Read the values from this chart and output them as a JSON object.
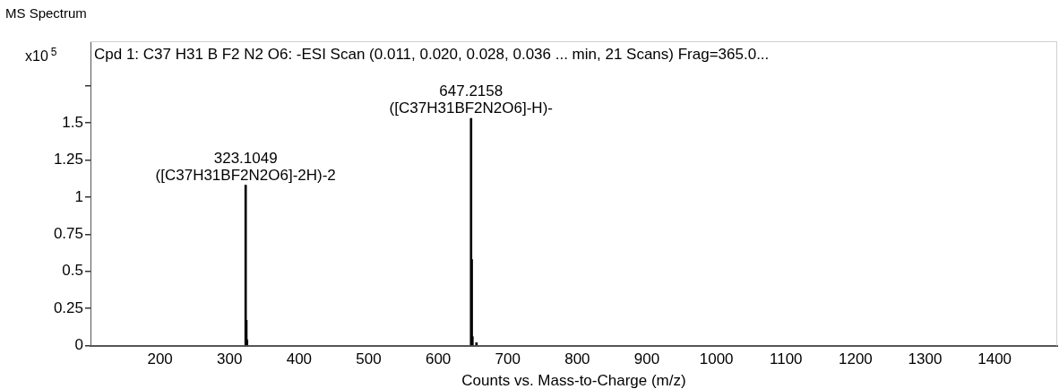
{
  "chart_data": {
    "type": "bar",
    "title": "MS Spectrum",
    "subtitle": "Cpd 1: C37 H31 B F2 N2 O6: -ESI Scan (0.011, 0.020, 0.028, 0.036 ... min, 21 Scans) Frag=365.0...",
    "xlabel": "Counts vs. Mass-to-Charge (m/z)",
    "ylabel": "x10$^{5}$",
    "x": [
      323.1049,
      324.1,
      325.1,
      647.2158,
      648.2,
      649.2,
      655
    ],
    "values": [
      1.08,
      0.17,
      0.04,
      1.53,
      0.58,
      0.06,
      0.02
    ],
    "color": "#000000",
    "xlim": [
      100,
      1490
    ],
    "xticks": [
      200,
      300,
      400,
      500,
      600,
      700,
      800,
      900,
      1000,
      1100,
      1200,
      1300,
      1400
    ],
    "ylim": [
      0,
      2.05
    ],
    "yticks": [
      0,
      0.25,
      0.5,
      0.75,
      1,
      1.25,
      1.5,
      {
        "value": 1.75,
        "label": null
      }
    ],
    "annotations": [
      {
        "text": "323.1049\n([C37H31BF2N2O6]-2H)-2",
        "x": 323.1049,
        "y": 1.08
      },
      {
        "text": "647.2158\n([C37H31BF2N2O6]-H)-",
        "x": 647.2158,
        "y": 1.53
      }
    ]
  }
}
